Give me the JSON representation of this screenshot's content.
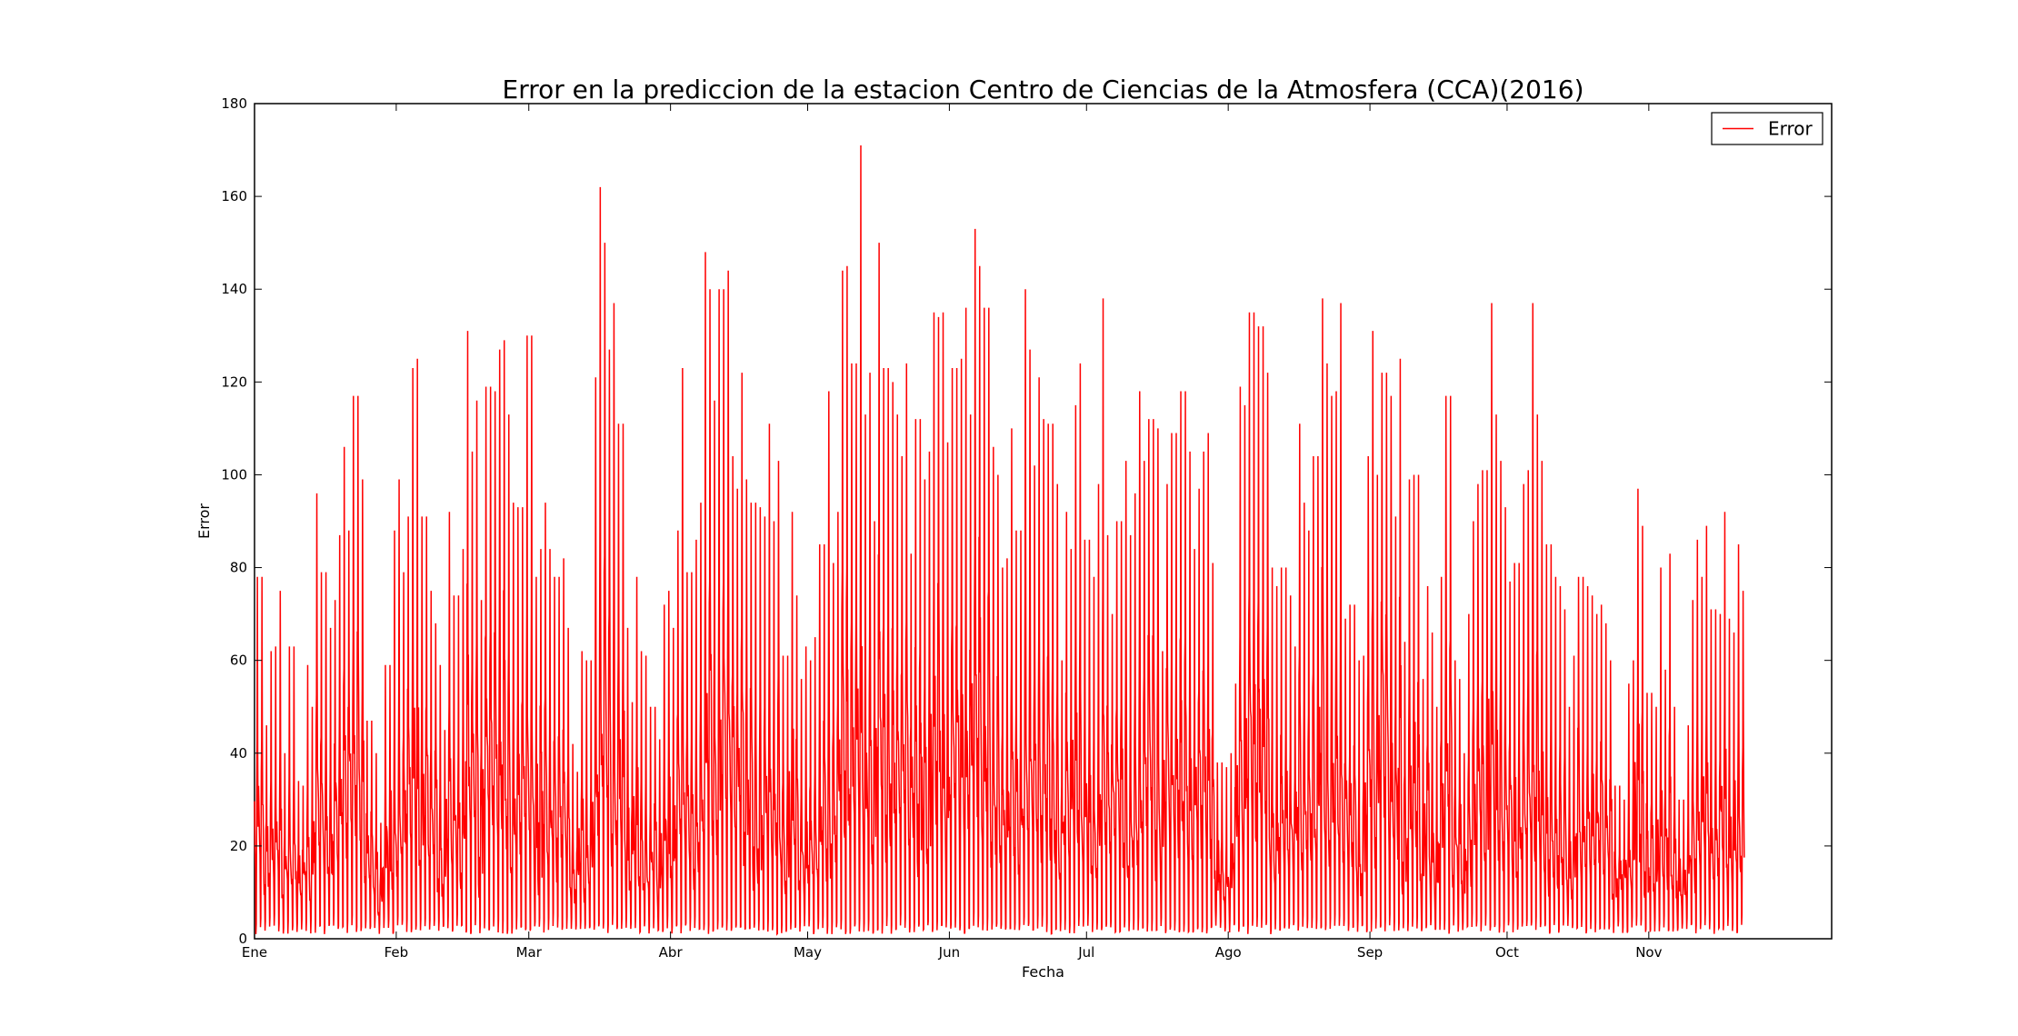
{
  "chart_data": {
    "type": "line",
    "title": "Error en la prediccion de la estacion Centro de Ciencias de la Atmosfera (CCA)(2016)",
    "xlabel": "Fecha",
    "ylabel": "Error",
    "ylim": [
      0,
      180
    ],
    "yticks": [
      0,
      20,
      40,
      60,
      80,
      100,
      120,
      140,
      160,
      180
    ],
    "xlim": [
      "2016-01-01",
      "2016-12-11"
    ],
    "xticks": [
      {
        "date": "2016-01-01",
        "label": "Ene"
      },
      {
        "date": "2016-02-01",
        "label": "Feb"
      },
      {
        "date": "2016-03-01",
        "label": "Mar"
      },
      {
        "date": "2016-04-01",
        "label": "Abr"
      },
      {
        "date": "2016-05-01",
        "label": "May"
      },
      {
        "date": "2016-06-01",
        "label": "Jun"
      },
      {
        "date": "2016-07-01",
        "label": "Jul"
      },
      {
        "date": "2016-08-01",
        "label": "Ago"
      },
      {
        "date": "2016-09-01",
        "label": "Sep"
      },
      {
        "date": "2016-10-01",
        "label": "Oct"
      },
      {
        "date": "2016-11-01",
        "label": "Nov"
      }
    ],
    "grid": false,
    "legend_position": "top-right",
    "series": [
      {
        "name": "Error",
        "color": "#ff0000",
        "x_start": "2016-01-01",
        "x_end": "2016-11-21",
        "daily_peaks": [
          78,
          46,
          62,
          63,
          75,
          40,
          63,
          34,
          33,
          59,
          50,
          96,
          79,
          67,
          73,
          87,
          106,
          88,
          117,
          99,
          47,
          47,
          40,
          25,
          59,
          88,
          99,
          79,
          91,
          123,
          125,
          91,
          75,
          68,
          59,
          45,
          92,
          74,
          84,
          131,
          105,
          116,
          73,
          119,
          118,
          127,
          129,
          113,
          94,
          93,
          130,
          130,
          78,
          84,
          94,
          84,
          78,
          82,
          67,
          42,
          36,
          62,
          60,
          121,
          162,
          150,
          127,
          137,
          111,
          67,
          51,
          78,
          62,
          61,
          50,
          43,
          72,
          75,
          67,
          88,
          123,
          79,
          86,
          94,
          148,
          140,
          116,
          140,
          144,
          104,
          97,
          122,
          99,
          94,
          93,
          91,
          111,
          90,
          103,
          61,
          92,
          74,
          56,
          63,
          60,
          65,
          85,
          118,
          81,
          92,
          144,
          145,
          124,
          171,
          113,
          122,
          90,
          150,
          123,
          120,
          113,
          104,
          124,
          83,
          112,
          99,
          105,
          135,
          134,
          135,
          107,
          123,
          125,
          136,
          113,
          153,
          145,
          136,
          106,
          100,
          80,
          82,
          110,
          88,
          140,
          127,
          102,
          121,
          112,
          111,
          98,
          60,
          92,
          84,
          115,
          124,
          86,
          78,
          98,
          138,
          87,
          70,
          90,
          103,
          87,
          96,
          118,
          103,
          112,
          110,
          62,
          98,
          109,
          109,
          118,
          105,
          84,
          97,
          105,
          109,
          81,
          38,
          37,
          40,
          55,
          119,
          115,
          135,
          132,
          132,
          122,
          80,
          76,
          80,
          74,
          63,
          111,
          94,
          88,
          104,
          138,
          124,
          117,
          118,
          137,
          69,
          72,
          60,
          61,
          104,
          131,
          100,
          122,
          117,
          91,
          125,
          64,
          99,
          100,
          56,
          76,
          66,
          50,
          78,
          117,
          60,
          56,
          40,
          70,
          90,
          98,
          101,
          137,
          113,
          103,
          93,
          77,
          81,
          98,
          101,
          137,
          113,
          103,
          85,
          78,
          76,
          71,
          50,
          61,
          78,
          76,
          74,
          70,
          72,
          68,
          60,
          33,
          30,
          55,
          60,
          97,
          89,
          53,
          50,
          80,
          58,
          83,
          50,
          30,
          46,
          73,
          86,
          78,
          89,
          71,
          70,
          92,
          69,
          66,
          85,
          75
        ],
        "min_value": 0
      }
    ]
  }
}
